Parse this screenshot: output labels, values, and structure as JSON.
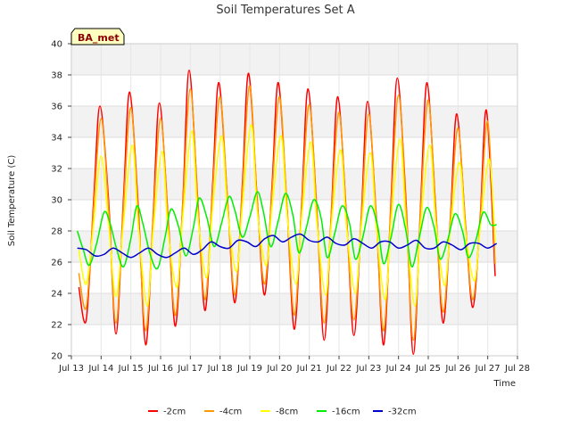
{
  "chart_data": {
    "type": "line",
    "title": "Soil Temperatures Set A",
    "xlabel": "Time",
    "ylabel": "Soil Temperature (C)",
    "site_badge": "BA_met",
    "ylim": [
      20,
      40
    ],
    "yticks": [
      20,
      22,
      24,
      26,
      28,
      30,
      32,
      34,
      36,
      38,
      40
    ],
    "xlim": [
      13,
      28
    ],
    "xticks": [
      13,
      14,
      15,
      16,
      17,
      18,
      19,
      20,
      21,
      22,
      23,
      24,
      25,
      26,
      27,
      28
    ],
    "xtick_labels": [
      "Jul 13",
      "Jul 14",
      "Jul 15",
      "Jul 16",
      "Jul 17",
      "Jul 18",
      "Jul 19",
      "Jul 20",
      "Jul 21",
      "Jul 22",
      "Jul 23",
      "Jul 24",
      "Jul 25",
      "Jul 26",
      "Jul 27",
      "Jul 28"
    ],
    "grid": true,
    "legend_position": "bottom",
    "series": [
      {
        "name": "-2cm",
        "color": "#ff0000",
        "x": [
          13.25,
          13.5,
          13.75,
          13.96,
          14.25,
          14.5,
          14.75,
          14.96,
          15.25,
          15.5,
          15.75,
          15.96,
          16.25,
          16.5,
          16.75,
          16.96,
          17.25,
          17.5,
          17.75,
          17.96,
          18.25,
          18.5,
          18.75,
          18.96,
          19.25,
          19.5,
          19.75,
          19.96,
          20.25,
          20.5,
          20.75,
          20.96,
          21.25,
          21.5,
          21.75,
          21.96,
          22.25,
          22.5,
          22.75,
          22.96,
          23.25,
          23.5,
          23.75,
          23.96,
          24.25,
          24.5,
          24.75,
          24.96,
          25.25,
          25.5,
          25.75,
          25.96,
          26.25,
          26.5,
          26.75,
          26.96,
          27.25
        ],
        "values": [
          24.4,
          22.3,
          30.0,
          36.0,
          30.0,
          21.4,
          30.0,
          36.9,
          29.5,
          20.7,
          29.0,
          36.2,
          29.0,
          21.9,
          30.0,
          38.3,
          30.0,
          22.9,
          31.0,
          37.5,
          30.0,
          23.4,
          31.0,
          38.1,
          30.0,
          23.9,
          31.0,
          37.5,
          29.5,
          21.7,
          30.0,
          37.1,
          29.5,
          21.0,
          29.5,
          36.6,
          29.0,
          21.3,
          29.0,
          36.3,
          29.0,
          20.7,
          30.0,
          37.8,
          30.0,
          20.1,
          30.0,
          37.5,
          29.5,
          22.1,
          29.0,
          35.5,
          28.5,
          23.1,
          29.0,
          35.7,
          25.1
        ]
      },
      {
        "name": "-4cm",
        "color": "#ff9900",
        "x": [
          13.25,
          13.5,
          13.75,
          14.0,
          14.25,
          14.5,
          14.75,
          15.0,
          15.25,
          15.5,
          15.75,
          16.0,
          16.25,
          16.5,
          16.75,
          17.0,
          17.25,
          17.5,
          17.75,
          18.0,
          18.25,
          18.5,
          18.75,
          19.0,
          19.25,
          19.5,
          19.75,
          20.0,
          20.25,
          20.5,
          20.75,
          21.0,
          21.25,
          21.5,
          21.75,
          22.0,
          22.25,
          22.5,
          22.75,
          23.0,
          23.25,
          23.5,
          23.75,
          24.0,
          24.25,
          24.5,
          24.75,
          25.0,
          25.25,
          25.5,
          25.75,
          26.0,
          26.25,
          26.5,
          26.75,
          27.0,
          27.25
        ],
        "values": [
          25.3,
          23.1,
          29.5,
          35.2,
          29.5,
          22.1,
          29.5,
          35.9,
          29.0,
          21.6,
          28.8,
          35.2,
          28.8,
          22.6,
          29.8,
          37.1,
          29.8,
          23.6,
          30.6,
          36.6,
          30.0,
          23.9,
          30.6,
          37.3,
          29.8,
          24.6,
          30.6,
          36.6,
          29.6,
          22.6,
          29.8,
          36.1,
          29.3,
          22.1,
          29.3,
          35.6,
          28.8,
          22.3,
          28.8,
          35.5,
          28.8,
          21.6,
          29.6,
          36.7,
          29.6,
          21.0,
          29.6,
          36.4,
          29.3,
          22.8,
          28.8,
          34.6,
          28.4,
          23.6,
          28.8,
          35.0,
          25.9
        ]
      },
      {
        "name": "-8cm",
        "color": "#ffff00",
        "x": [
          13.25,
          13.5,
          13.75,
          14.0,
          14.25,
          14.5,
          14.75,
          15.05,
          15.25,
          15.55,
          15.75,
          16.05,
          16.25,
          16.55,
          16.75,
          17.05,
          17.25,
          17.55,
          17.75,
          18.05,
          18.25,
          18.55,
          18.75,
          19.05,
          19.25,
          19.55,
          19.75,
          20.05,
          20.25,
          20.55,
          20.75,
          21.05,
          21.25,
          21.55,
          21.75,
          22.05,
          22.25,
          22.55,
          22.75,
          23.05,
          23.25,
          23.55,
          23.75,
          24.05,
          24.25,
          24.55,
          24.75,
          25.05,
          25.25,
          25.55,
          25.75,
          26.05,
          26.25,
          26.55,
          26.75,
          27.05,
          27.25
        ],
        "values": [
          26.8,
          24.6,
          28.5,
          32.8,
          28.5,
          23.8,
          28.5,
          33.5,
          28.3,
          23.2,
          28.0,
          33.1,
          28.0,
          24.4,
          29.0,
          34.4,
          29.0,
          25.0,
          29.5,
          34.1,
          29.3,
          25.4,
          29.6,
          34.8,
          29.3,
          25.8,
          29.6,
          34.1,
          29.0,
          24.6,
          29.0,
          33.7,
          28.6,
          23.9,
          28.6,
          33.2,
          28.3,
          24.0,
          28.3,
          33.0,
          28.3,
          23.6,
          28.6,
          33.9,
          28.6,
          23.2,
          28.6,
          33.5,
          28.6,
          24.5,
          28.3,
          32.4,
          28.0,
          24.8,
          28.3,
          32.6,
          27.3
        ]
      },
      {
        "name": "-16cm",
        "color": "#00ee00",
        "x": [
          13.2,
          13.4,
          13.6,
          13.85,
          14.1,
          14.3,
          14.5,
          14.75,
          15.0,
          15.2,
          15.4,
          15.65,
          15.9,
          16.15,
          16.35,
          16.6,
          16.85,
          17.1,
          17.3,
          17.55,
          17.8,
          18.05,
          18.3,
          18.5,
          18.75,
          19.0,
          19.25,
          19.45,
          19.7,
          19.95,
          20.2,
          20.45,
          20.65,
          20.9,
          21.15,
          21.4,
          21.6,
          21.85,
          22.1,
          22.35,
          22.55,
          22.8,
          23.05,
          23.3,
          23.5,
          23.75,
          24.0,
          24.25,
          24.45,
          24.7,
          24.95,
          25.2,
          25.4,
          25.65,
          25.9,
          26.15,
          26.35,
          26.6,
          26.85,
          27.1,
          27.3
        ],
        "values": [
          28.0,
          26.8,
          25.8,
          27.2,
          29.2,
          28.5,
          27.0,
          25.7,
          27.5,
          29.6,
          28.5,
          26.5,
          25.6,
          27.6,
          29.4,
          28.3,
          26.4,
          28.2,
          30.1,
          28.9,
          27.0,
          28.5,
          30.2,
          29.3,
          27.6,
          28.9,
          30.5,
          29.3,
          27.0,
          28.6,
          30.4,
          29.0,
          26.6,
          28.2,
          30.0,
          28.8,
          26.3,
          27.8,
          29.6,
          28.5,
          26.2,
          27.6,
          29.6,
          28.3,
          25.9,
          27.6,
          29.7,
          28.0,
          25.7,
          27.6,
          29.5,
          28.2,
          26.2,
          27.4,
          29.1,
          28.0,
          26.3,
          27.4,
          29.2,
          28.4,
          28.4
        ]
      },
      {
        "name": "-32cm",
        "color": "#0000cc",
        "x": [
          13.2,
          13.5,
          13.8,
          14.1,
          14.4,
          14.7,
          15.0,
          15.3,
          15.6,
          15.9,
          16.2,
          16.5,
          16.8,
          17.1,
          17.4,
          17.7,
          18.0,
          18.3,
          18.6,
          18.9,
          19.2,
          19.5,
          19.8,
          20.1,
          20.4,
          20.7,
          21.0,
          21.3,
          21.6,
          21.9,
          22.2,
          22.5,
          22.8,
          23.1,
          23.4,
          23.7,
          24.0,
          24.3,
          24.6,
          24.9,
          25.2,
          25.5,
          25.8,
          26.1,
          26.4,
          26.7,
          27.0,
          27.3
        ],
        "values": [
          26.9,
          26.8,
          26.4,
          26.5,
          26.9,
          26.6,
          26.3,
          26.6,
          26.9,
          26.5,
          26.3,
          26.6,
          26.9,
          26.5,
          26.8,
          27.3,
          27.0,
          26.9,
          27.4,
          27.3,
          27.0,
          27.5,
          27.7,
          27.3,
          27.6,
          27.8,
          27.4,
          27.3,
          27.6,
          27.2,
          27.1,
          27.5,
          27.2,
          26.9,
          27.3,
          27.3,
          26.9,
          27.1,
          27.4,
          26.9,
          26.9,
          27.3,
          27.1,
          26.8,
          27.2,
          27.2,
          26.9,
          27.2
        ]
      }
    ]
  }
}
